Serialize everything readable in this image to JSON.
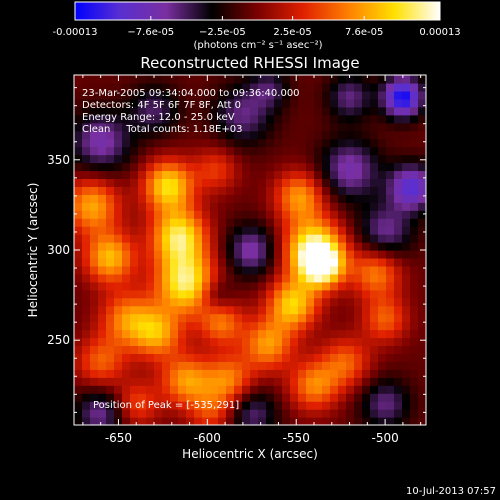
{
  "chart_data": {
    "type": "heatmap",
    "title": "Reconstructed RHESSI Image",
    "xlabel": "Heliocentric X (arcsec)",
    "ylabel": "Heliocentric Y (arcsec)",
    "xlim": [
      -675,
      -477
    ],
    "ylim": [
      203,
      397
    ],
    "xticks": [
      -650,
      -600,
      -550,
      -500
    ],
    "xtick_labels": [
      "-650",
      "-600",
      "-550",
      "-500"
    ],
    "yticks": [
      250,
      300,
      350
    ],
    "ytick_labels": [
      "250",
      "300",
      "350"
    ],
    "colorbar": {
      "range": [
        -0.00013,
        0.00013
      ],
      "tick_values": [
        -0.00013,
        -7.6e-05,
        -2.5e-05,
        2.5e-05,
        7.6e-05,
        0.00013
      ],
      "tick_labels": [
        "-0.00013",
        "−7.6e-05",
        "−2.5e-05",
        "2.5e-05",
        "7.6e-05",
        "0.00013"
      ],
      "units_label": "(photons cm⁻² s⁻¹ asec⁻²)",
      "colormap": [
        "#0000ff",
        "#5a2fd0",
        "#7a2fa0",
        "#000000",
        "#7a0000",
        "#e02000",
        "#ff8000",
        "#ffe000",
        "#ffffff"
      ]
    },
    "annotations": {
      "time_range": "23-Mar-2005 09:34:04.000 to 09:36:40.000",
      "detectors": "Detectors: 4F 5F 6F 7F 8F, Att 0",
      "energy": "Energy Range: 12.0 - 25.0 keV",
      "clean": "Clean     Total counts: 1.18E+03",
      "peak": "Position of Peak = [-535,291]"
    },
    "peak": {
      "x": -535,
      "y": 291
    },
    "sources": [
      {
        "x": -665,
        "y": 325,
        "amp": 0.65,
        "sigma": 11
      },
      {
        "x": -655,
        "y": 296,
        "amp": 0.7,
        "sigma": 10
      },
      {
        "x": -645,
        "y": 262,
        "amp": 0.55,
        "sigma": 11
      },
      {
        "x": -660,
        "y": 238,
        "amp": 0.45,
        "sigma": 10
      },
      {
        "x": -640,
        "y": 215,
        "amp": 0.4,
        "sigma": 9
      },
      {
        "x": -622,
        "y": 336,
        "amp": 0.8,
        "sigma": 10
      },
      {
        "x": -616,
        "y": 308,
        "amp": 0.85,
        "sigma": 11
      },
      {
        "x": -612,
        "y": 282,
        "amp": 0.9,
        "sigma": 12
      },
      {
        "x": -628,
        "y": 254,
        "amp": 0.6,
        "sigma": 10
      },
      {
        "x": -612,
        "y": 228,
        "amp": 0.6,
        "sigma": 10
      },
      {
        "x": -592,
        "y": 260,
        "amp": 0.5,
        "sigma": 9
      },
      {
        "x": -588,
        "y": 228,
        "amp": 0.55,
        "sigma": 10
      },
      {
        "x": -598,
        "y": 210,
        "amp": 0.35,
        "sigma": 9
      },
      {
        "x": -548,
        "y": 330,
        "amp": 0.6,
        "sigma": 10
      },
      {
        "x": -540,
        "y": 300,
        "amp": 1.0,
        "sigma": 12
      },
      {
        "x": -535,
        "y": 291,
        "amp": 0.7,
        "sigma": 8
      },
      {
        "x": -552,
        "y": 270,
        "amp": 0.75,
        "sigma": 10
      },
      {
        "x": -566,
        "y": 248,
        "amp": 0.6,
        "sigma": 10
      },
      {
        "x": -540,
        "y": 225,
        "amp": 0.55,
        "sigma": 10
      },
      {
        "x": -522,
        "y": 238,
        "amp": 0.45,
        "sigma": 10
      },
      {
        "x": -505,
        "y": 288,
        "amp": 0.55,
        "sigma": 10
      },
      {
        "x": -500,
        "y": 262,
        "amp": 0.45,
        "sigma": 9
      },
      {
        "x": -595,
        "y": 345,
        "amp": 0.35,
        "sigma": 9
      },
      {
        "x": -520,
        "y": 345,
        "amp": -0.5,
        "sigma": 12
      },
      {
        "x": -500,
        "y": 310,
        "amp": -0.45,
        "sigma": 11
      },
      {
        "x": -490,
        "y": 385,
        "amp": -0.9,
        "sigma": 8
      },
      {
        "x": -485,
        "y": 335,
        "amp": -0.7,
        "sigma": 9
      },
      {
        "x": -660,
        "y": 360,
        "amp": -0.5,
        "sigma": 12
      },
      {
        "x": -580,
        "y": 375,
        "amp": -0.4,
        "sigma": 12
      },
      {
        "x": -630,
        "y": 378,
        "amp": -0.35,
        "sigma": 10
      },
      {
        "x": -575,
        "y": 300,
        "amp": -0.5,
        "sigma": 10
      },
      {
        "x": -660,
        "y": 210,
        "amp": -0.45,
        "sigma": 10
      },
      {
        "x": -575,
        "y": 210,
        "amp": -0.4,
        "sigma": 10
      },
      {
        "x": -500,
        "y": 215,
        "amp": -0.4,
        "sigma": 10
      },
      {
        "x": -595,
        "y": 275,
        "amp": -0.3,
        "sigma": 7
      },
      {
        "x": -520,
        "y": 385,
        "amp": -0.4,
        "sigma": 9
      },
      {
        "x": -565,
        "y": 390,
        "amp": -0.3,
        "sigma": 8
      }
    ]
  },
  "footer": {
    "timestamp": "10-Jul-2013 07:57"
  }
}
